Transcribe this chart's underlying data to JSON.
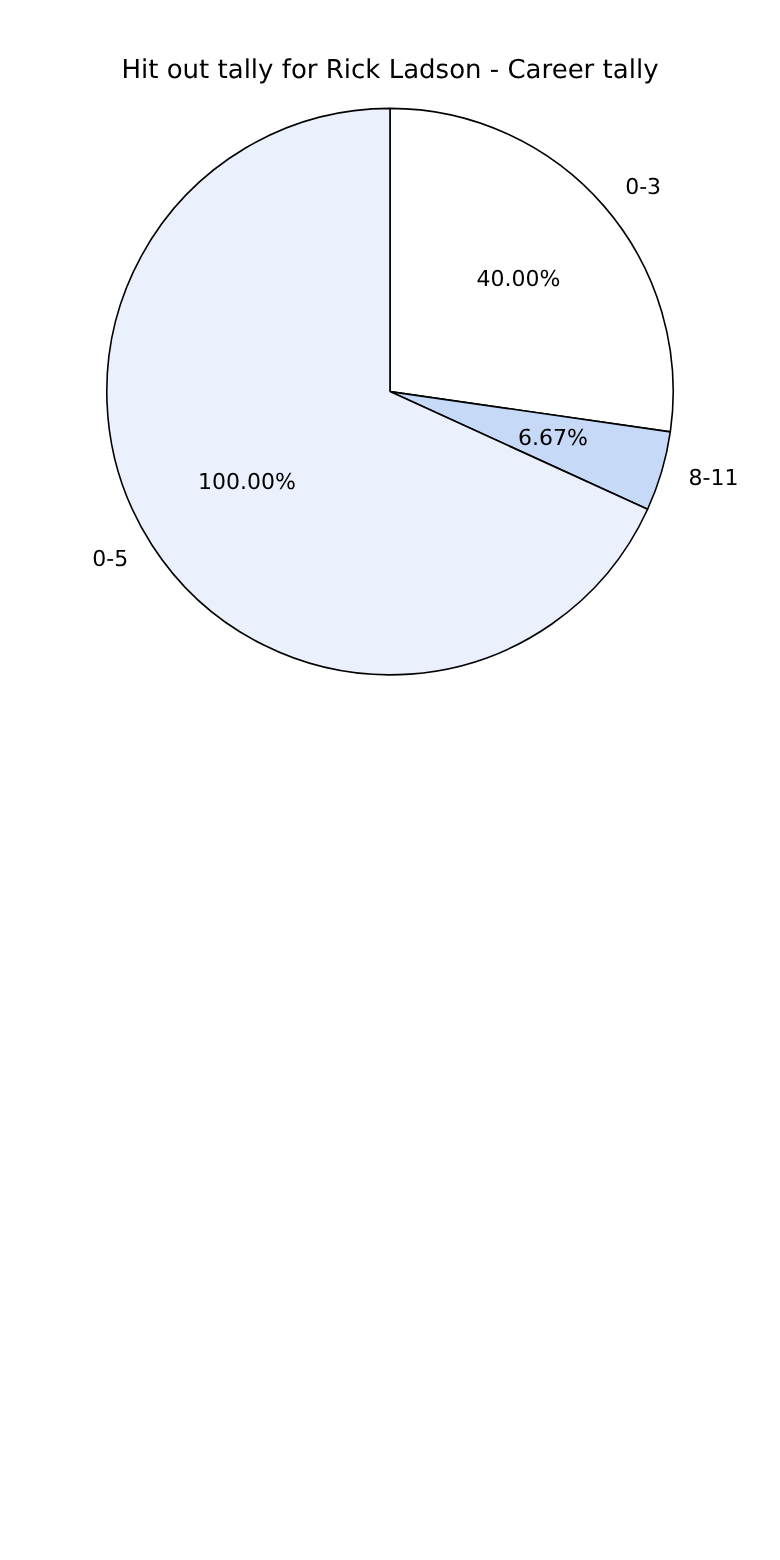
{
  "chart_data": {
    "type": "pie",
    "title": "Hit out tally for Rick Ladson - Career tally",
    "categories": [
      "0-3",
      "8-11",
      "0-5"
    ],
    "values": [
      40,
      6.67,
      100
    ],
    "value_labels": [
      "40.00%",
      "6.67%",
      "100.00%"
    ],
    "colors": [
      "#ffffff",
      "#c6d9f7",
      "#eaf1fd"
    ],
    "legend": false
  }
}
